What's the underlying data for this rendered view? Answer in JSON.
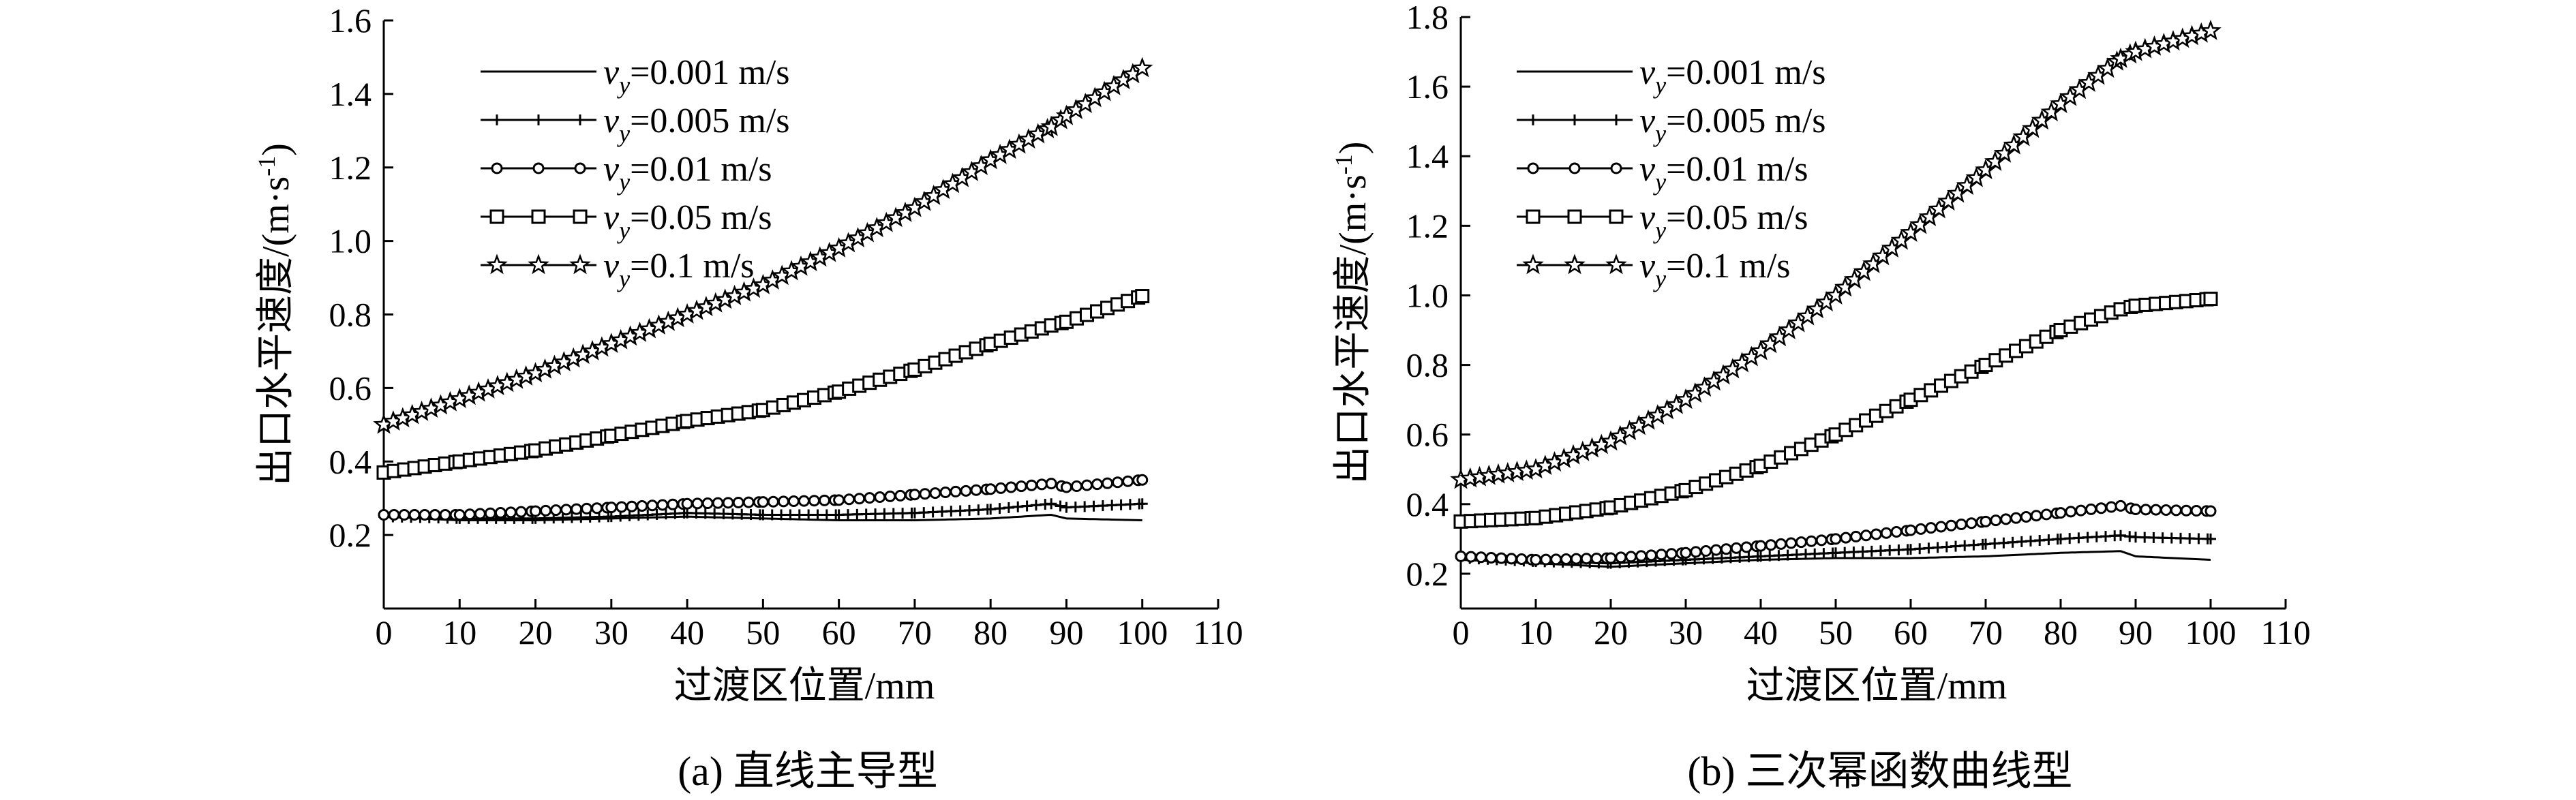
{
  "chart_data": [
    {
      "type": "line",
      "caption": "(a) 直线主导型",
      "xlabel": "过渡区位置/mm",
      "ylabel": "出口水平速度/(m·s",
      "ylabel_sup": "-1",
      "ylabel_close": ")",
      "xlim": [
        0,
        110
      ],
      "ylim": [
        0.0,
        1.6
      ],
      "x_ticks": [
        0,
        10,
        20,
        30,
        40,
        50,
        60,
        70,
        80,
        90,
        100,
        110
      ],
      "x_tick_labels": [
        "0",
        "10",
        "20",
        "30",
        "40",
        "50",
        "60",
        "70",
        "80",
        "90",
        "100",
        "110"
      ],
      "y_ticks": [
        0.2,
        0.4,
        0.6,
        0.8,
        1.0,
        1.2,
        1.4,
        1.6
      ],
      "y_tick_labels": [
        "0.2",
        "0.4",
        "0.6",
        "0.8",
        "1.0",
        "1.2",
        "1.4",
        "1.6"
      ],
      "x": [
        0,
        10,
        20,
        30,
        40,
        50,
        60,
        70,
        80,
        88,
        90,
        100
      ],
      "series": [
        {
          "name": "vy=0.001 m/s",
          "label_var": "v",
          "label_sub": "y",
          "label_rest": "=0.001 m/s",
          "marker": "none",
          "values": [
            0.25,
            0.24,
            0.24,
            0.245,
            0.25,
            0.245,
            0.24,
            0.24,
            0.245,
            0.255,
            0.245,
            0.24
          ]
        },
        {
          "name": "vy=0.005 m/s",
          "label_var": "v",
          "label_sub": "y",
          "label_rest": "=0.005 m/s",
          "marker": "plus",
          "values": [
            0.25,
            0.245,
            0.245,
            0.25,
            0.26,
            0.255,
            0.255,
            0.26,
            0.27,
            0.285,
            0.275,
            0.285
          ]
        },
        {
          "name": "vy=0.01 m/s",
          "label_var": "v",
          "label_sub": "y",
          "label_rest": "=0.01 m/s",
          "marker": "circle",
          "values": [
            0.255,
            0.255,
            0.265,
            0.275,
            0.285,
            0.29,
            0.295,
            0.31,
            0.325,
            0.34,
            0.33,
            0.35
          ]
        },
        {
          "name": "vy=0.05 m/s",
          "label_var": "v",
          "label_sub": "y",
          "label_rest": "=0.05 m/s",
          "marker": "square",
          "values": [
            0.37,
            0.4,
            0.43,
            0.47,
            0.51,
            0.54,
            0.59,
            0.65,
            0.72,
            0.77,
            0.78,
            0.85
          ]
        },
        {
          "name": "vy=0.1 m/s",
          "label_var": "v",
          "label_sub": "y",
          "label_rest": "=0.1 m/s",
          "marker": "star",
          "values": [
            0.5,
            0.57,
            0.64,
            0.72,
            0.8,
            0.88,
            0.98,
            1.09,
            1.22,
            1.31,
            1.34,
            1.47
          ]
        }
      ]
    },
    {
      "type": "line",
      "caption": "(b) 三次幂函数曲线型",
      "xlabel": "过渡区位置/mm",
      "ylabel": "出口水平速度/(m·s",
      "ylabel_sup": "-1",
      "ylabel_close": ")",
      "xlim": [
        0,
        110
      ],
      "ylim": [
        0.1,
        1.8
      ],
      "x_ticks": [
        0,
        10,
        20,
        30,
        40,
        50,
        60,
        70,
        80,
        90,
        100,
        110
      ],
      "x_tick_labels": [
        "0",
        "10",
        "20",
        "30",
        "40",
        "50",
        "60",
        "70",
        "80",
        "90",
        "100",
        "110"
      ],
      "y_ticks": [
        0.2,
        0.4,
        0.6,
        0.8,
        1.0,
        1.2,
        1.4,
        1.6,
        1.8
      ],
      "y_tick_labels": [
        "0.2",
        "0.4",
        "0.6",
        "0.8",
        "1.0",
        "1.2",
        "1.4",
        "1.6",
        "1.8"
      ],
      "x": [
        0,
        10,
        20,
        30,
        40,
        50,
        60,
        70,
        80,
        88,
        90,
        100
      ],
      "series": [
        {
          "name": "vy=0.001 m/s",
          "label_var": "v",
          "label_sub": "y",
          "label_rest": "=0.001 m/s",
          "marker": "none",
          "values": [
            0.24,
            0.23,
            0.22,
            0.23,
            0.24,
            0.245,
            0.245,
            0.25,
            0.26,
            0.265,
            0.25,
            0.24
          ]
        },
        {
          "name": "vy=0.005 m/s",
          "label_var": "v",
          "label_sub": "y",
          "label_rest": "=0.005 m/s",
          "marker": "plus",
          "values": [
            0.245,
            0.235,
            0.23,
            0.24,
            0.25,
            0.26,
            0.27,
            0.285,
            0.3,
            0.31,
            0.305,
            0.3
          ]
        },
        {
          "name": "vy=0.01 m/s",
          "label_var": "v",
          "label_sub": "y",
          "label_rest": "=0.01 m/s",
          "marker": "circle",
          "values": [
            0.25,
            0.24,
            0.245,
            0.26,
            0.28,
            0.3,
            0.325,
            0.35,
            0.375,
            0.395,
            0.385,
            0.38
          ]
        },
        {
          "name": "vy=0.05 m/s",
          "label_var": "v",
          "label_sub": "y",
          "label_rest": "=0.05 m/s",
          "marker": "square",
          "values": [
            0.35,
            0.36,
            0.39,
            0.44,
            0.51,
            0.6,
            0.7,
            0.8,
            0.9,
            0.96,
            0.97,
            0.99
          ]
        },
        {
          "name": "vy=0.1 m/s",
          "label_var": "v",
          "label_sub": "y",
          "label_rest": "=0.1 m/s",
          "marker": "star",
          "values": [
            0.47,
            0.5,
            0.58,
            0.7,
            0.84,
            1.0,
            1.18,
            1.36,
            1.55,
            1.68,
            1.7,
            1.76
          ]
        }
      ]
    }
  ]
}
